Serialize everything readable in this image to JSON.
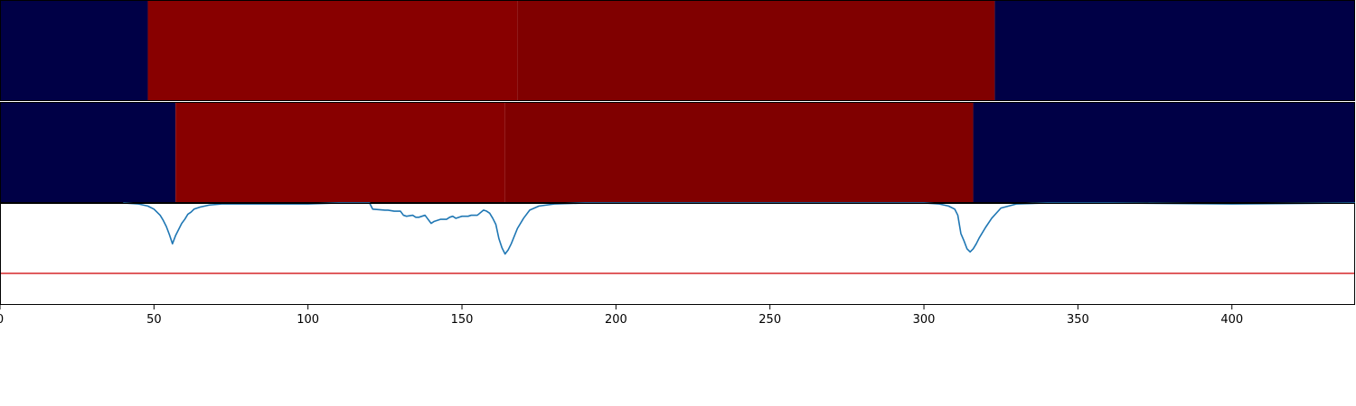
{
  "chart_data": [
    {
      "type": "heatmap",
      "xlim": [
        0,
        440
      ],
      "segments": [
        {
          "start": 0,
          "end": 48,
          "color": "#000046"
        },
        {
          "start": 48,
          "end": 168,
          "color": "#880000"
        },
        {
          "start": 168,
          "end": 323,
          "color": "#800000"
        },
        {
          "start": 323,
          "end": 440,
          "color": "#000046"
        }
      ]
    },
    {
      "type": "heatmap",
      "xlim": [
        0,
        440
      ],
      "segments": [
        {
          "start": 0,
          "end": 57,
          "color": "#000046"
        },
        {
          "start": 57,
          "end": 164,
          "color": "#880000"
        },
        {
          "start": 164,
          "end": 316,
          "color": "#800000"
        },
        {
          "start": 316,
          "end": 440,
          "color": "#000046"
        }
      ]
    },
    {
      "type": "line",
      "xlim": [
        0,
        440
      ],
      "ylim": [
        0,
        1
      ],
      "grid": false,
      "xticks": [
        0,
        50,
        100,
        150,
        200,
        250,
        300,
        350,
        400
      ],
      "xtick_labels": [
        "0",
        "50",
        "100",
        "150",
        "200",
        "250",
        "300",
        "350",
        "400"
      ],
      "threshold": {
        "y": 0.31,
        "color": "#d62728"
      },
      "series": [
        {
          "color": "#1f77b4",
          "x": [
            40,
            45,
            48,
            50,
            52,
            53,
            54,
            55,
            56,
            57,
            58,
            59,
            60,
            61,
            62,
            63,
            65,
            68,
            72,
            80,
            90,
            100,
            110,
            115,
            120,
            121,
            125,
            126,
            128,
            129,
            130,
            131,
            132,
            134,
            135,
            136,
            137,
            138,
            140,
            141,
            142,
            143,
            145,
            146,
            147,
            148,
            150,
            152,
            153,
            155,
            157,
            158,
            159,
            160,
            161,
            162,
            163,
            164,
            165,
            166,
            168,
            170,
            172,
            175,
            180,
            190,
            200,
            220,
            250,
            280,
            300,
            305,
            308,
            310,
            311,
            312,
            313,
            314,
            315,
            316,
            317,
            318,
            320,
            322,
            325,
            330,
            340,
            360,
            400,
            440
          ],
          "y": [
            1.0,
            0.99,
            0.97,
            0.94,
            0.88,
            0.83,
            0.77,
            0.69,
            0.6,
            0.68,
            0.74,
            0.8,
            0.84,
            0.89,
            0.91,
            0.94,
            0.96,
            0.98,
            0.99,
            0.99,
            0.99,
            0.99,
            1.0,
            1.0,
            1.0,
            0.94,
            0.93,
            0.93,
            0.92,
            0.92,
            0.92,
            0.88,
            0.87,
            0.88,
            0.86,
            0.86,
            0.87,
            0.88,
            0.8,
            0.82,
            0.83,
            0.84,
            0.84,
            0.86,
            0.87,
            0.85,
            0.87,
            0.87,
            0.88,
            0.88,
            0.93,
            0.92,
            0.9,
            0.85,
            0.79,
            0.65,
            0.56,
            0.5,
            0.54,
            0.6,
            0.75,
            0.85,
            0.93,
            0.97,
            0.99,
            1.0,
            1.0,
            1.0,
            1.0,
            1.0,
            1.0,
            0.99,
            0.97,
            0.94,
            0.88,
            0.7,
            0.63,
            0.55,
            0.52,
            0.55,
            0.6,
            0.66,
            0.76,
            0.85,
            0.95,
            0.99,
            1.0,
            1.0,
            0.99,
            1.0
          ]
        }
      ]
    }
  ]
}
